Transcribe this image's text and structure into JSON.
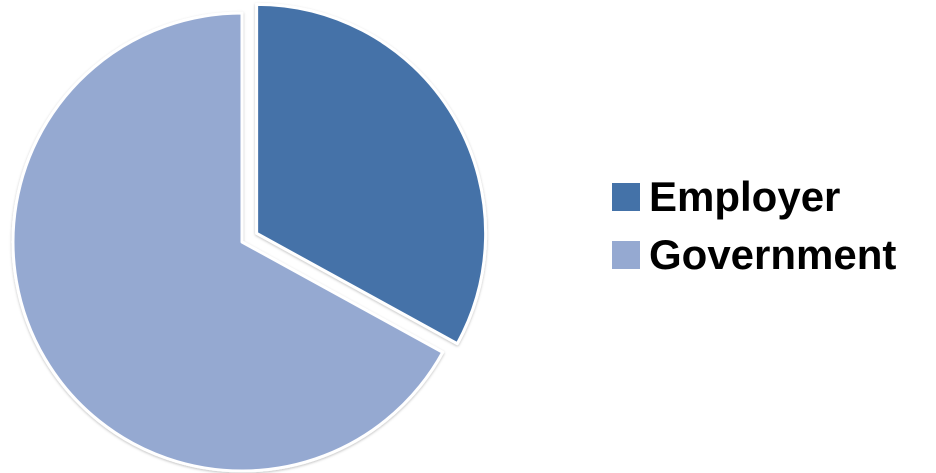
{
  "chart_data": {
    "type": "pie",
    "title": "",
    "slices": [
      {
        "label": "Employer",
        "value": 33,
        "color": "#4472A8",
        "exploded": true
      },
      {
        "label": "Government",
        "value": 67,
        "color": "#95A9D1",
        "exploded": false
      }
    ],
    "start_angle_deg": 0,
    "legend_position": "right"
  }
}
